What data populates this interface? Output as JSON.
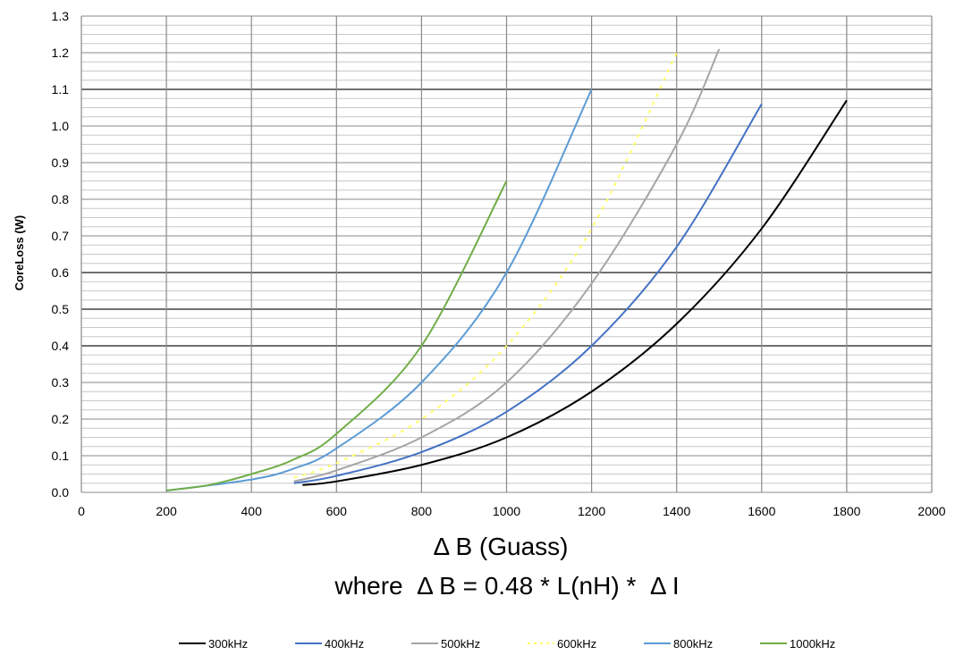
{
  "chart_data": {
    "type": "line",
    "title": "",
    "xlabel": "Δ B (Guass)",
    "subtitle": "where  Δ B = 0.48 * L(nH) *  Δ I",
    "ylabel": "CoreLoss (W)",
    "xlim": [
      0,
      2000
    ],
    "ylim": [
      0,
      1.3
    ],
    "x_ticks": [
      "0",
      "200",
      "400",
      "600",
      "800",
      "1000",
      "1200",
      "1400",
      "1600",
      "1800",
      "2000"
    ],
    "y_ticks": [
      "0.0",
      "0.1",
      "0.2",
      "0.3",
      "0.4",
      "0.5",
      "0.6",
      "0.7",
      "0.8",
      "0.9",
      "1.0",
      "1.1",
      "1.2",
      "1.3"
    ],
    "grid": true,
    "legend_position": "bottom",
    "series": [
      {
        "name": "300kHz",
        "color": "#000000",
        "dashed": false,
        "x": [
          520,
          600,
          800,
          1000,
          1200,
          1400,
          1600,
          1800
        ],
        "y": [
          0.02,
          0.03,
          0.075,
          0.15,
          0.275,
          0.46,
          0.72,
          1.07
        ]
      },
      {
        "name": "400kHz",
        "color": "#4472c4",
        "dashed": false,
        "x": [
          500,
          600,
          800,
          1000,
          1200,
          1400,
          1600
        ],
        "y": [
          0.025,
          0.045,
          0.11,
          0.22,
          0.4,
          0.67,
          1.06
        ]
      },
      {
        "name": "500kHz",
        "color": "#a5a5a5",
        "dashed": false,
        "x": [
          500,
          600,
          800,
          1000,
          1200,
          1400,
          1500
        ],
        "y": [
          0.03,
          0.06,
          0.15,
          0.3,
          0.57,
          0.95,
          1.21
        ]
      },
      {
        "name": "600kHz",
        "color": "#ffff66",
        "dashed": true,
        "x": [
          500,
          600,
          800,
          1000,
          1200,
          1400
        ],
        "y": [
          0.04,
          0.08,
          0.2,
          0.4,
          0.72,
          1.2
        ]
      },
      {
        "name": "800kHz",
        "color": "#5b9bd5",
        "dashed": false,
        "x": [
          200,
          400,
          500,
          600,
          800,
          1000,
          1200
        ],
        "y": [
          0.005,
          0.035,
          0.065,
          0.12,
          0.3,
          0.6,
          1.1
        ]
      },
      {
        "name": "1000kHz",
        "color": "#70ad47",
        "dashed": false,
        "x": [
          200,
          300,
          400,
          500,
          600,
          800,
          1000
        ],
        "y": [
          0.005,
          0.02,
          0.05,
          0.09,
          0.16,
          0.4,
          0.85
        ]
      }
    ]
  }
}
